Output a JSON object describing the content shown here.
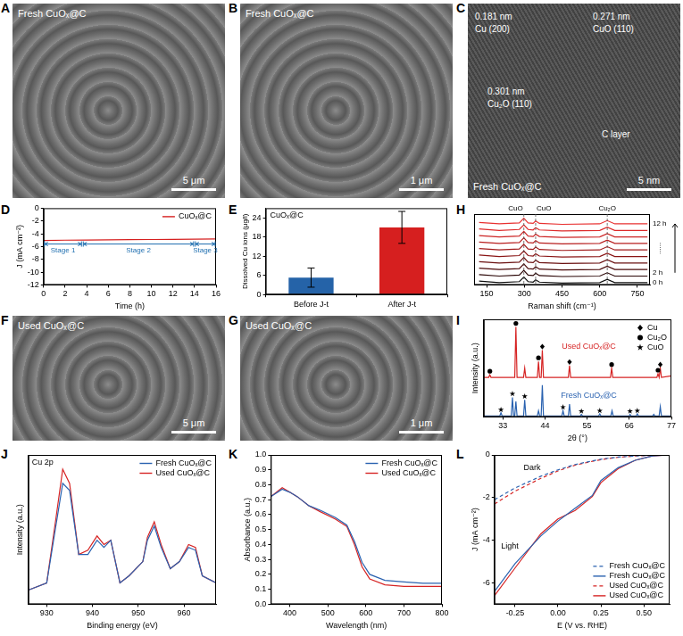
{
  "images": [
    {
      "panel": "A",
      "label": "Fresh CuOₓ@C",
      "scale_bar": "5 μm"
    },
    {
      "panel": "B",
      "label": "Fresh CuOₓ@C",
      "scale_bar": "1 μm"
    },
    {
      "panel": "C",
      "label": "Fresh CuOₓ@C",
      "scale_bar": "5 nm",
      "lattice": [
        {
          "spacing": "0.181 nm",
          "plane": "Cu (200)"
        },
        {
          "spacing": "0.271 nm",
          "plane": "CuO (110)"
        },
        {
          "spacing": "0.301 nm",
          "plane": "Cu₂O (110)"
        }
      ],
      "region": "C layer"
    },
    {
      "panel": "F",
      "label": "Used CuOₓ@C",
      "scale_bar": "5 μm"
    },
    {
      "panel": "G",
      "label": "Used CuOₓ@C",
      "scale_bar": "1 μm"
    }
  ],
  "chart_data": [
    {
      "panel": "D",
      "type": "line",
      "x": [
        0,
        2,
        4,
        6,
        8,
        10,
        12,
        14,
        16
      ],
      "series": [
        {
          "name": "CuOₓ@C",
          "color": "#d62020",
          "values": [
            -5.05,
            -5.0,
            -4.98,
            -4.95,
            -4.92,
            -4.9,
            -4.87,
            -4.85,
            -4.8
          ]
        }
      ],
      "xlim": [
        0,
        16
      ],
      "xticks": [
        0,
        2,
        4,
        6,
        8,
        10,
        12,
        14,
        16
      ],
      "ylim": [
        -12,
        0
      ],
      "yticks": [
        -12,
        -10,
        -8,
        -6,
        -4,
        -2,
        0
      ],
      "x_label": "Time (h)",
      "y_label": "J (mA cm⁻²)",
      "legend": "top-right",
      "grid": false,
      "stages": [
        {
          "label": "Stage 1",
          "start": 0,
          "end": 3.6,
          "y": -5.6,
          "color": "#1f6fb0"
        },
        {
          "label": "Stage 2",
          "start": 3.6,
          "end": 14,
          "y": -5.6,
          "color": "#1f6fb0"
        },
        {
          "label": "Stage 3",
          "start": 14,
          "end": 16,
          "y": -5.6,
          "color": "#1f6fb0"
        }
      ]
    },
    {
      "panel": "E",
      "type": "bar",
      "title": "CuOₓ@C",
      "categories": [
        "Before J-t",
        "After J-t"
      ],
      "values": [
        5.3,
        21.0
      ],
      "errors": [
        3.0,
        5.0
      ],
      "colors": [
        "#2563a8",
        "#d61f1f"
      ],
      "ylim": [
        0,
        27
      ],
      "yticks": [
        0,
        6,
        12,
        18,
        24
      ],
      "y_label": "Dissolved Cu ions (μg/l)",
      "grid": false
    },
    {
      "panel": "H",
      "type": "line",
      "x": [
        120,
        200,
        280,
        298,
        315,
        335,
        345,
        360,
        450,
        600,
        630,
        660,
        790
      ],
      "series": [
        {
          "name": "0 h",
          "color": "#111111",
          "values": [
            0.4,
            0.25,
            0.35,
            0.85,
            0.35,
            0.3,
            0.55,
            0.3,
            0.2,
            0.25,
            0.6,
            0.25,
            0.25
          ]
        },
        {
          "name": "2 h",
          "color": "#2a0505",
          "values": [
            1.1,
            0.95,
            1.05,
            1.55,
            1.05,
            1.0,
            1.25,
            1.0,
            0.9,
            0.95,
            1.3,
            0.95,
            0.95
          ]
        },
        {
          "color": "#4a0a0a",
          "values": [
            1.8,
            1.65,
            1.75,
            2.25,
            1.75,
            1.7,
            1.95,
            1.7,
            1.6,
            1.65,
            2.0,
            1.65,
            1.65
          ]
        },
        {
          "color": "#6a1010",
          "values": [
            2.5,
            2.35,
            2.45,
            2.95,
            2.45,
            2.4,
            2.65,
            2.4,
            2.3,
            2.35,
            2.7,
            2.35,
            2.35
          ]
        },
        {
          "color": "#8a1515",
          "values": [
            3.2,
            3.05,
            3.15,
            3.65,
            3.15,
            3.1,
            3.35,
            3.1,
            3.0,
            3.05,
            3.4,
            3.05,
            3.05
          ]
        },
        {
          "color": "#a01a1a",
          "values": [
            3.9,
            3.75,
            3.85,
            4.35,
            3.85,
            3.8,
            4.05,
            3.8,
            3.7,
            3.75,
            4.1,
            3.75,
            3.75
          ]
        },
        {
          "color": "#b81f1f",
          "values": [
            4.6,
            4.45,
            4.55,
            5.05,
            4.55,
            4.5,
            4.75,
            4.5,
            4.4,
            4.45,
            4.8,
            4.45,
            4.45
          ]
        },
        {
          "color": "#cc2424",
          "values": [
            5.3,
            5.15,
            5.25,
            5.75,
            5.25,
            5.2,
            5.45,
            5.2,
            5.1,
            5.15,
            5.5,
            5.15,
            5.15
          ]
        },
        {
          "color": "#dd2a2a",
          "values": [
            6.0,
            5.85,
            5.95,
            6.45,
            5.95,
            5.9,
            6.15,
            5.9,
            5.8,
            5.85,
            6.2,
            5.85,
            5.85
          ]
        },
        {
          "name": "12 h",
          "color": "#e83030",
          "values": [
            6.7,
            6.55,
            6.65,
            7.15,
            6.65,
            6.6,
            6.85,
            6.6,
            6.5,
            6.55,
            6.9,
            6.55,
            6.55
          ]
        }
      ],
      "xlim": [
        100,
        800
      ],
      "xticks": [
        150,
        300,
        450,
        600,
        750
      ],
      "ylim": [
        0,
        7.6
      ],
      "x_label": "Raman shift (cm⁻¹)",
      "tick_labels": "x",
      "grid": false,
      "peaks": [
        {
          "label": "CuO",
          "x": 298
        },
        {
          "label": "CuO",
          "x": 345
        },
        {
          "label": "Cu₂O",
          "x": 630
        }
      ],
      "ellipsis": "......"
    },
    {
      "panel": "I",
      "type": "line",
      "series": [
        {
          "name": "Used CuOₓ@C",
          "color": "#d62424",
          "x": [
            28,
            29.3,
            29.6,
            29.9,
            36.1,
            36.4,
            36.7,
            38.4,
            38.7,
            39.0,
            42.0,
            42.3,
            42.6,
            43.0,
            43.3,
            43.6,
            50.1,
            50.4,
            50.7,
            61.1,
            61.4,
            61.7,
            73.2,
            73.5,
            73.8,
            74.1,
            74.4,
            77
          ],
          "values": [
            0.77,
            0.77,
            0.82,
            0.77,
            0.77,
            1.75,
            0.77,
            0.77,
            0.95,
            0.77,
            0.77,
            1.08,
            0.77,
            0.77,
            1.3,
            0.77,
            0.77,
            1.0,
            0.77,
            0.77,
            0.95,
            0.77,
            0.77,
            0.84,
            0.77,
            0.95,
            0.77,
            0.8
          ]
        },
        {
          "name": "Fresh CuOₓ@C",
          "color": "#2a62b0",
          "x": [
            28,
            32.2,
            32.5,
            32.8,
            35.2,
            35.5,
            35.8,
            36.1,
            36.4,
            36.7,
            38.4,
            38.7,
            39.0,
            42.0,
            42.3,
            42.6,
            43.0,
            43.3,
            43.6,
            48.4,
            48.7,
            49.0,
            50.1,
            50.4,
            50.7,
            53.2,
            53.5,
            53.8,
            58.0,
            58.3,
            58.6,
            61.2,
            61.5,
            61.8,
            66.0,
            66.2,
            66.5,
            67.8,
            68.1,
            68.4,
            72.1,
            72.4,
            72.7,
            73.8,
            74.1,
            74.4,
            77
          ],
          "values": [
            0.02,
            0.02,
            0.08,
            0.02,
            0.02,
            0.38,
            0.02,
            0.02,
            0.3,
            0.02,
            0.02,
            0.33,
            0.02,
            0.02,
            0.12,
            0.02,
            0.02,
            0.62,
            0.02,
            0.02,
            0.12,
            0.02,
            0.02,
            0.25,
            0.02,
            0.02,
            0.05,
            0.02,
            0.02,
            0.06,
            0.02,
            0.02,
            0.12,
            0.02,
            0.02,
            0.05,
            0.02,
            0.02,
            0.06,
            0.02,
            0.02,
            0.05,
            0.02,
            0.02,
            0.2,
            0.02,
            0.02
          ]
        }
      ],
      "xlim": [
        28,
        77
      ],
      "xticks": [
        33,
        44,
        55,
        66,
        77
      ],
      "ylim": [
        0,
        1.9
      ],
      "x_label": "2θ (°)",
      "y_label": "Intensity (a.u.)",
      "tick_labels": "x",
      "legend": "top-right",
      "grid": false,
      "phases": [
        {
          "name": "Cu",
          "marker": "diamond",
          "color": "#000000"
        },
        {
          "name": "Cu₂O",
          "marker": "circle",
          "color": "#000000"
        },
        {
          "name": "CuO",
          "marker": "star",
          "color": "#000000"
        }
      ],
      "peak_marks": [
        {
          "x": 29.6,
          "y": 0.89,
          "phase": "Cu₂O"
        },
        {
          "x": 36.4,
          "y": 1.82,
          "phase": "Cu₂O"
        },
        {
          "x": 42.3,
          "y": 1.15,
          "phase": "Cu₂O"
        },
        {
          "x": 43.3,
          "y": 1.37,
          "phase": "Cu"
        },
        {
          "x": 50.4,
          "y": 1.07,
          "phase": "Cu"
        },
        {
          "x": 61.4,
          "y": 1.02,
          "phase": "Cu₂O"
        },
        {
          "x": 73.5,
          "y": 0.91,
          "phase": "Cu₂O"
        },
        {
          "x": 74.1,
          "y": 1.02,
          "phase": "Cu"
        },
        {
          "x": 32.5,
          "y": 0.14,
          "phase": "CuO"
        },
        {
          "x": 35.5,
          "y": 0.45,
          "phase": "CuO"
        },
        {
          "x": 38.7,
          "y": 0.4,
          "phase": "CuO"
        },
        {
          "x": 48.7,
          "y": 0.19,
          "phase": "CuO"
        },
        {
          "x": 53.5,
          "y": 0.11,
          "phase": "CuO"
        },
        {
          "x": 58.3,
          "y": 0.12,
          "phase": "CuO"
        },
        {
          "x": 66.2,
          "y": 0.11,
          "phase": "CuO"
        },
        {
          "x": 68.1,
          "y": 0.12,
          "phase": "CuO"
        }
      ]
    },
    {
      "panel": "J",
      "type": "line",
      "title": "Cu 2p",
      "x": [
        926,
        930,
        932,
        933.5,
        935,
        937,
        939,
        941,
        942.5,
        944,
        946,
        948,
        951,
        952,
        953.5,
        955,
        957,
        959,
        961,
        962.5,
        964,
        967
      ],
      "series": [
        {
          "name": "Fresh CuOₓ@C",
          "color": "#2a62b0",
          "values": [
            0.1,
            0.15,
            0.55,
            0.85,
            0.8,
            0.35,
            0.35,
            0.45,
            0.4,
            0.45,
            0.15,
            0.2,
            0.3,
            0.45,
            0.55,
            0.4,
            0.25,
            0.3,
            0.4,
            0.38,
            0.2,
            0.15
          ]
        },
        {
          "name": "Used CuOₓ@C",
          "color": "#d62424",
          "values": [
            0.1,
            0.15,
            0.6,
            0.95,
            0.85,
            0.35,
            0.38,
            0.48,
            0.42,
            0.45,
            0.15,
            0.2,
            0.3,
            0.47,
            0.58,
            0.42,
            0.25,
            0.3,
            0.42,
            0.4,
            0.2,
            0.15
          ]
        }
      ],
      "xlim": [
        926,
        967
      ],
      "xticks": [
        930,
        940,
        950,
        960
      ],
      "ylim": [
        0,
        1.05
      ],
      "x_label": "Binding energy (eV)",
      "y_label": "Intensity (a.u.)",
      "tick_labels": "x",
      "legend": "top-right",
      "grid": false
    },
    {
      "panel": "K",
      "type": "line",
      "x": [
        350,
        380,
        400,
        420,
        450,
        480,
        520,
        550,
        570,
        590,
        610,
        650,
        700,
        750,
        800
      ],
      "series": [
        {
          "name": "Fresh CuOₓ@C",
          "color": "#2a62b0",
          "values": [
            0.72,
            0.77,
            0.75,
            0.72,
            0.66,
            0.63,
            0.58,
            0.53,
            0.42,
            0.28,
            0.2,
            0.16,
            0.15,
            0.14,
            0.14
          ]
        },
        {
          "name": "Used CuOₓ@C",
          "color": "#d62424",
          "values": [
            0.72,
            0.78,
            0.75,
            0.72,
            0.66,
            0.62,
            0.57,
            0.52,
            0.4,
            0.25,
            0.17,
            0.13,
            0.12,
            0.12,
            0.12
          ]
        }
      ],
      "xlim": [
        350,
        800
      ],
      "xticks": [
        400,
        500,
        600,
        700,
        800
      ],
      "ylim": [
        0,
        1
      ],
      "yticks": [
        {
          "value": 0,
          "label": "0.0"
        },
        0.1,
        0.2,
        0.3,
        0.4,
        0.5,
        0.6,
        0.7,
        0.8,
        0.9,
        {
          "value": 1,
          "label": "1.0"
        }
      ],
      "x_label": "Wavelength (nm)",
      "y_label": "Absorbance (a.u.)",
      "legend": "top-right",
      "grid": false
    },
    {
      "panel": "L",
      "type": "line",
      "x": [
        -0.37,
        -0.25,
        -0.1,
        0,
        0.1,
        0.2,
        0.25,
        0.35,
        0.45,
        0.55,
        0.65
      ],
      "series": [
        {
          "name": "Fresh CuOₓ@C",
          "color": "#2a62b0",
          "line_style": "dashed",
          "values": [
            -2.1,
            -1.55,
            -1.0,
            -0.7,
            -0.45,
            -0.28,
            -0.2,
            -0.1,
            -0.05,
            -0.02,
            0
          ]
        },
        {
          "name": "Fresh CuOₓ@C",
          "color": "#2a62b0",
          "line_style": "solid",
          "values": [
            -6.4,
            -5.1,
            -3.8,
            -3.1,
            -2.5,
            -1.9,
            -1.2,
            -0.6,
            -0.25,
            -0.05,
            0
          ]
        },
        {
          "name": "Used CuOₓ@C",
          "color": "#d62424",
          "line_style": "dashed",
          "values": [
            -2.3,
            -1.7,
            -1.1,
            -0.75,
            -0.48,
            -0.3,
            -0.22,
            -0.11,
            -0.05,
            -0.02,
            0
          ]
        },
        {
          "name": "Used CuOₓ@C",
          "color": "#d62424",
          "line_style": "solid",
          "values": [
            -6.6,
            -5.3,
            -3.7,
            -3.0,
            -2.6,
            -1.95,
            -1.3,
            -0.65,
            -0.25,
            -0.05,
            0
          ]
        }
      ],
      "xlim": [
        -0.37,
        0.65
      ],
      "xticks": [
        -0.25,
        {
          "value": 0,
          "label": "0.00"
        },
        0.25,
        {
          "value": 0.5,
          "label": "0.50"
        }
      ],
      "ylim": [
        -7,
        0
      ],
      "yticks": [
        -6,
        -4,
        -2,
        0
      ],
      "x_label": "E (V vs. RHE)",
      "y_label": "J (mA cm⁻²)",
      "legend": "bottom-right",
      "grid": false,
      "annotations": [
        {
          "text": "Dark",
          "x": -0.15,
          "y": -0.6
        },
        {
          "text": "Light",
          "x": -0.28,
          "y": -4.3
        }
      ]
    }
  ]
}
